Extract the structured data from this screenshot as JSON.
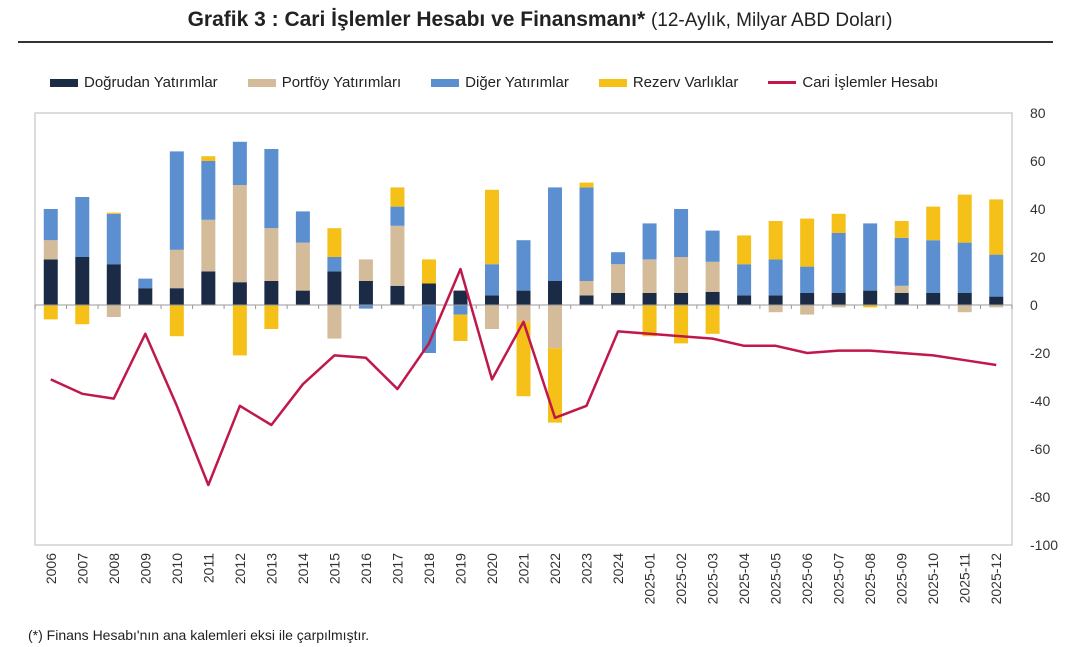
{
  "title": {
    "main": "Grafik 3 : Cari İşlemler Hesabı ve Finansmanı*",
    "sub": "(12-Aylık, Milyar ABD Doları)"
  },
  "footnote": "(*) Finans Hesabı'nın ana kalemleri eksi ile çarpılmıştır.",
  "chart_data": {
    "type": "bar",
    "stacked": true,
    "title": "Grafik 3 : Cari İşlemler Hesabı ve Finansmanı*",
    "subtitle": "(12-Aylık, Milyar ABD Doları)",
    "ylim": [
      -100,
      80
    ],
    "yticks": [
      80,
      60,
      40,
      20,
      0,
      -20,
      -40,
      -60,
      -80,
      -100
    ],
    "y_axis_side": "right",
    "legend": "top",
    "grid": false,
    "categories": [
      "2006",
      "2007",
      "2008",
      "2009",
      "2010",
      "2011",
      "2012",
      "2013",
      "2014",
      "2015",
      "2016",
      "2017",
      "2018",
      "2019",
      "2020",
      "2021",
      "2022",
      "2023",
      "2024",
      "2025-01",
      "2025-02",
      "2025-03",
      "2025-04",
      "2025-05",
      "2025-06",
      "2025-07",
      "2025-08",
      "2025-09",
      "2025-10",
      "2025-11",
      "2025-12"
    ],
    "series": [
      {
        "name": "Doğrudan Yatırımlar",
        "type": "bar",
        "color": "#1b2b45",
        "values": [
          19,
          20,
          17,
          7,
          7,
          14,
          9.5,
          10,
          6,
          14,
          10,
          8,
          9,
          6,
          4,
          6,
          10,
          4,
          5,
          5,
          5,
          5.5,
          4,
          4,
          5,
          5,
          6,
          5,
          5,
          5,
          3.5
        ]
      },
      {
        "name": "Portföy Yatırımları",
        "type": "bar",
        "color": "#d4bc9b",
        "values": [
          8,
          0,
          -5,
          0,
          16,
          21.5,
          40.5,
          22,
          20,
          -14,
          9,
          25,
          0,
          0,
          -10,
          -7,
          -18,
          6,
          12,
          14,
          15,
          12.5,
          0,
          -3,
          -4,
          -1,
          0,
          3,
          0,
          -3,
          -1
        ]
      },
      {
        "name": "Diğer Yatırımlar",
        "type": "bar",
        "color": "#5b8fd0",
        "values": [
          13,
          25,
          21,
          4,
          41,
          24.5,
          18,
          33,
          13,
          6,
          -1.5,
          8,
          -20,
          -4,
          13,
          21,
          39,
          39,
          5,
          15,
          20,
          13,
          13,
          15,
          11,
          25,
          28,
          20,
          22,
          21,
          17.5
        ]
      },
      {
        "name": "Rezerv Varlıklar",
        "type": "bar",
        "color": "#f5c018",
        "values": [
          -6,
          -8,
          0.5,
          0,
          -13,
          2,
          -21,
          -10,
          0,
          12,
          0,
          8,
          10,
          -11,
          31,
          -31,
          -31,
          2,
          0,
          -13,
          -16,
          -12,
          12,
          16,
          20,
          8,
          -1,
          7,
          14,
          20,
          23
        ]
      },
      {
        "name": "Cari İşlemler Hesabı",
        "type": "line",
        "color": "#c0184a",
        "values": [
          -31,
          -37,
          -39,
          -12,
          -42,
          -75,
          -42,
          -50,
          -33,
          -21,
          -22,
          -35,
          -16,
          15,
          -31,
          -7,
          -47,
          -42,
          -11,
          -12,
          -13,
          -14,
          -17,
          -17,
          -20,
          -19,
          -19,
          -20,
          -21,
          -23,
          -25
        ]
      }
    ]
  }
}
